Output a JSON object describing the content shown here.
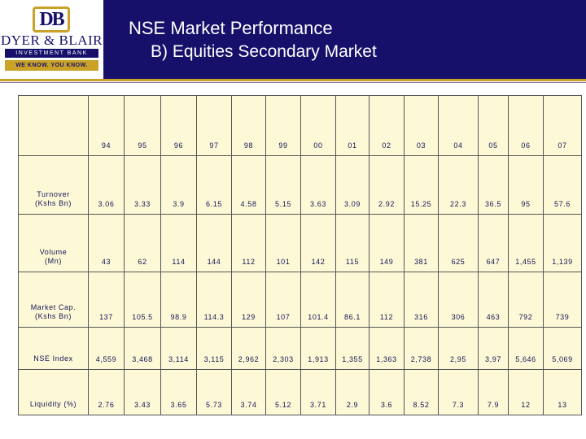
{
  "logo": {
    "mark": "DB",
    "name": "DYER & BLAIR",
    "subtitle": "INVESTMENT BANK",
    "tagline": "WE KNOW. YOU KNOW."
  },
  "title": {
    "line1": "NSE Market Performance",
    "line2": "B) Equities Secondary Market"
  },
  "table": {
    "years": [
      "94",
      "95",
      "96",
      "97",
      "98",
      "99",
      "00",
      "01",
      "02",
      "03",
      "04",
      "05",
      "06",
      "07"
    ],
    "rows": [
      {
        "label_line1": "Turnover",
        "label_line2": "(Kshs Bn)",
        "values": [
          "3.06",
          "3.33",
          "3.9",
          "6.15",
          "4.58",
          "5.15",
          "3.63",
          "3.09",
          "2.92",
          "15.25",
          "22.3",
          "36.5",
          "95",
          "57.6"
        ]
      },
      {
        "label_line1": "Volume",
        "label_line2": "(Mn)",
        "values": [
          "43",
          "62",
          "114",
          "144",
          "112",
          "101",
          "142",
          "115",
          "149",
          "381",
          "625",
          "647",
          "1,455",
          "1,139"
        ]
      },
      {
        "label_line1": "Market Cap.",
        "label_line2": "(Kshs Bn)",
        "values": [
          "137",
          "105.5",
          "98.9",
          "114.3",
          "129",
          "107",
          "101.4",
          "86.1",
          "112",
          "316",
          "306",
          "463",
          "792",
          "739"
        ]
      },
      {
        "label_line1": "NSE Index",
        "label_line2": "",
        "values": [
          "4,559",
          "3,468",
          "3,114",
          "3,115",
          "2,962",
          "2,303",
          "1,913",
          "1,355",
          "1,363",
          "2,738",
          "2,95",
          "3,97",
          "5,646",
          "5,069"
        ]
      },
      {
        "label_line1": "Liquidity (%)",
        "label_line2": "",
        "values": [
          "2.76",
          "3.43",
          "3.65",
          "5.73",
          "3.74",
          "5.12",
          "3.71",
          "2.9",
          "3.6",
          "8.52",
          "7.3",
          "7.9",
          "12",
          "13"
        ]
      }
    ]
  },
  "colors": {
    "header_bg": "#16106a",
    "accent_gold": "#c9a227",
    "table_bg": "#fdf9d7",
    "text": "#141454"
  }
}
